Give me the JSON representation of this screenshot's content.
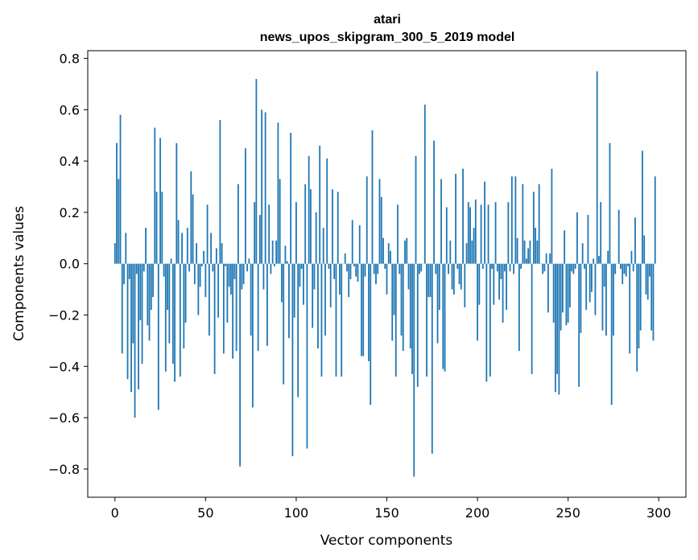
{
  "chart_data": {
    "type": "bar",
    "title": "atari",
    "subtitle": "news_upos_skipgram_300_5_2019 model",
    "xlabel": "Vector components",
    "ylabel": "Components values",
    "xlim": [
      -15,
      315
    ],
    "ylim": [
      -0.91,
      0.83
    ],
    "xticks": [
      0,
      50,
      100,
      150,
      200,
      250,
      300
    ],
    "yticks": [
      -0.8,
      -0.6,
      -0.4,
      -0.2,
      0.0,
      0.2,
      0.4,
      0.6,
      0.8
    ],
    "ytick_labels": [
      "−0.8",
      "−0.6",
      "−0.4",
      "−0.2",
      "0.0",
      "0.2",
      "0.4",
      "0.6",
      "0.8"
    ],
    "grid": false,
    "bar_color": "#1f77b4",
    "x_start": 0,
    "values": [
      0.08,
      0.47,
      0.33,
      0.58,
      -0.35,
      -0.08,
      0.12,
      -0.45,
      -0.06,
      -0.5,
      -0.31,
      -0.6,
      -0.04,
      -0.49,
      -0.22,
      -0.39,
      -0.03,
      0.14,
      -0.24,
      -0.3,
      -0.18,
      -0.13,
      0.53,
      0.28,
      -0.57,
      0.49,
      0.28,
      -0.05,
      -0.42,
      -0.18,
      -0.31,
      0.02,
      -0.39,
      -0.46,
      0.47,
      0.17,
      -0.44,
      0.12,
      -0.33,
      -0.23,
      0.14,
      -0.03,
      0.36,
      0.27,
      -0.08,
      0.08,
      -0.2,
      -0.09,
      -0.01,
      0.05,
      -0.13,
      0.23,
      -0.28,
      0.12,
      -0.03,
      -0.43,
      0.06,
      -0.21,
      0.56,
      0.08,
      -0.35,
      -0.01,
      -0.23,
      -0.09,
      -0.12,
      -0.37,
      -0.06,
      -0.34,
      0.31,
      -0.79,
      -0.1,
      -0.08,
      0.45,
      -0.03,
      0.02,
      -0.28,
      -0.56,
      0.24,
      0.72,
      -0.34,
      0.19,
      0.6,
      -0.1,
      0.59,
      -0.32,
      0.23,
      -0.04,
      0.09,
      -0.01,
      0.09,
      0.55,
      0.33,
      -0.15,
      -0.47,
      0.07,
      0.01,
      -0.29,
      0.51,
      -0.75,
      -0.21,
      0.24,
      -0.52,
      -0.09,
      -0.02,
      -0.16,
      0.31,
      -0.72,
      0.42,
      0.29,
      -0.25,
      -0.1,
      0.2,
      -0.33,
      0.46,
      -0.44,
      0.14,
      -0.28,
      0.41,
      -0.02,
      -0.17,
      0.29,
      -0.06,
      -0.44,
      0.28,
      -0.12,
      -0.44,
      0.0,
      0.04,
      -0.03,
      -0.13,
      -0.06,
      0.17,
      -0.01,
      -0.05,
      -0.07,
      0.15,
      -0.36,
      -0.36,
      -0.05,
      0.34,
      -0.38,
      -0.55,
      0.52,
      -0.04,
      -0.08,
      -0.04,
      0.33,
      0.26,
      0.1,
      -0.02,
      -0.12,
      0.08,
      0.05,
      -0.3,
      -0.2,
      -0.44,
      0.23,
      -0.04,
      -0.28,
      -0.34,
      0.09,
      0.1,
      -0.1,
      -0.33,
      -0.43,
      -0.83,
      0.42,
      -0.48,
      -0.04,
      -0.03,
      0.0,
      0.62,
      -0.44,
      -0.13,
      -0.13,
      -0.74,
      0.48,
      -0.04,
      -0.31,
      -0.18,
      0.33,
      -0.41,
      -0.42,
      0.22,
      -0.04,
      0.09,
      -0.1,
      -0.12,
      0.35,
      -0.02,
      -0.08,
      -0.1,
      0.37,
      -0.17,
      0.08,
      0.24,
      0.22,
      0.09,
      0.14,
      0.25,
      -0.3,
      -0.16,
      0.23,
      -0.02,
      0.32,
      -0.46,
      0.23,
      -0.44,
      -0.02,
      -0.16,
      0.24,
      -0.03,
      -0.14,
      -0.06,
      -0.23,
      -0.03,
      -0.18,
      0.24,
      -0.03,
      0.34,
      -0.04,
      0.34,
      0.1,
      -0.34,
      -0.02,
      0.31,
      0.09,
      0.02,
      0.06,
      0.09,
      -0.43,
      0.28,
      0.14,
      0.09,
      0.31,
      0.0,
      -0.04,
      -0.03,
      0.04,
      -0.19,
      0.04,
      0.37,
      -0.23,
      -0.5,
      -0.43,
      -0.51,
      -0.26,
      -0.19,
      0.13,
      -0.24,
      -0.23,
      -0.17,
      -0.03,
      -0.04,
      -0.02,
      0.2,
      -0.48,
      -0.27,
      0.08,
      -0.02,
      -0.18,
      0.19,
      -0.15,
      -0.11,
      0.02,
      -0.2,
      0.75,
      0.03,
      0.24,
      -0.26,
      -0.09,
      -0.28,
      0.05,
      0.47,
      -0.55,
      -0.28,
      -0.04,
      0.0,
      0.21,
      -0.02,
      -0.08,
      -0.04,
      -0.05,
      -0.01,
      -0.35,
      0.05,
      -0.03,
      0.18,
      -0.42,
      -0.33,
      -0.26,
      0.44,
      0.11,
      -0.12,
      -0.14,
      -0.05,
      -0.26,
      -0.3,
      0.34
    ]
  }
}
